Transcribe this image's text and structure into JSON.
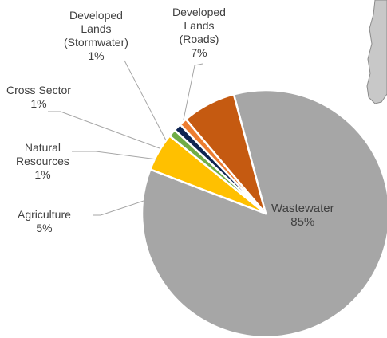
{
  "chart_data": {
    "type": "pie",
    "slices": [
      {
        "label_lines": [
          "Wastewater"
        ],
        "value": 85,
        "pct": "85%",
        "color": "#a6a6a6"
      },
      {
        "label_lines": [
          "Agriculture"
        ],
        "value": 5,
        "pct": "5%",
        "color": "#ffc000"
      },
      {
        "label_lines": [
          "Natural",
          "Resources"
        ],
        "value": 1,
        "pct": "1%",
        "color": "#70ad47"
      },
      {
        "label_lines": [
          "Cross Sector"
        ],
        "value": 1,
        "pct": "1%",
        "color": "#0e2451"
      },
      {
        "label_lines": [
          "Developed",
          "Lands",
          "(Stormwater)"
        ],
        "value": 1,
        "pct": "1%",
        "color": "#ed7d31"
      },
      {
        "label_lines": [
          "Developed",
          "Lands",
          "(Roads)"
        ],
        "value": 7,
        "pct": "7%",
        "color": "#c55a11"
      }
    ],
    "legend": "none"
  }
}
